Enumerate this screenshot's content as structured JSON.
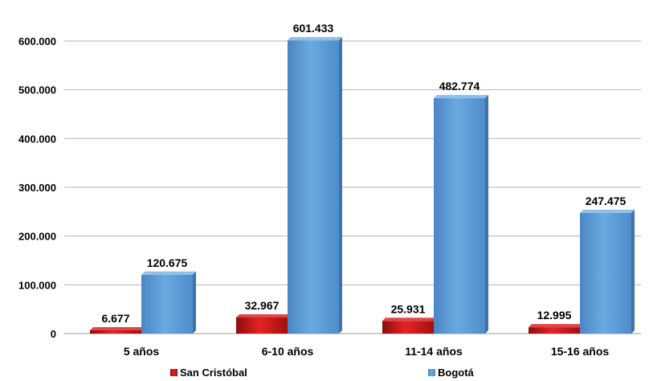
{
  "chart_data": {
    "type": "bar",
    "categories": [
      "5 años",
      "6-10 años",
      "11-14 años",
      "15-16 años"
    ],
    "series": [
      {
        "name": "San Cristóbal",
        "values": [
          6677,
          32967,
          25931,
          12995
        ],
        "labels": [
          "6.677",
          "32.967",
          "25.931",
          "12.995"
        ],
        "color": "#cc1414"
      },
      {
        "name": "Bogotá",
        "values": [
          120675,
          601433,
          482774,
          247475
        ],
        "labels": [
          "120.675",
          "601.433",
          "482.774",
          "247.475"
        ],
        "color": "#5b9bd5"
      }
    ],
    "yticks": [
      {
        "value": 0,
        "label": "0"
      },
      {
        "value": 100000,
        "label": "100.000"
      },
      {
        "value": 200000,
        "label": "200.000"
      },
      {
        "value": 300000,
        "label": "300.000"
      },
      {
        "value": 400000,
        "label": "400.000"
      },
      {
        "value": 500000,
        "label": "500.000"
      },
      {
        "value": 600000,
        "label": "600.000"
      }
    ],
    "ylim": [
      0,
      600000
    ],
    "grid": true,
    "legend_position": "bottom",
    "title": "",
    "xlabel": "",
    "ylabel": ""
  }
}
